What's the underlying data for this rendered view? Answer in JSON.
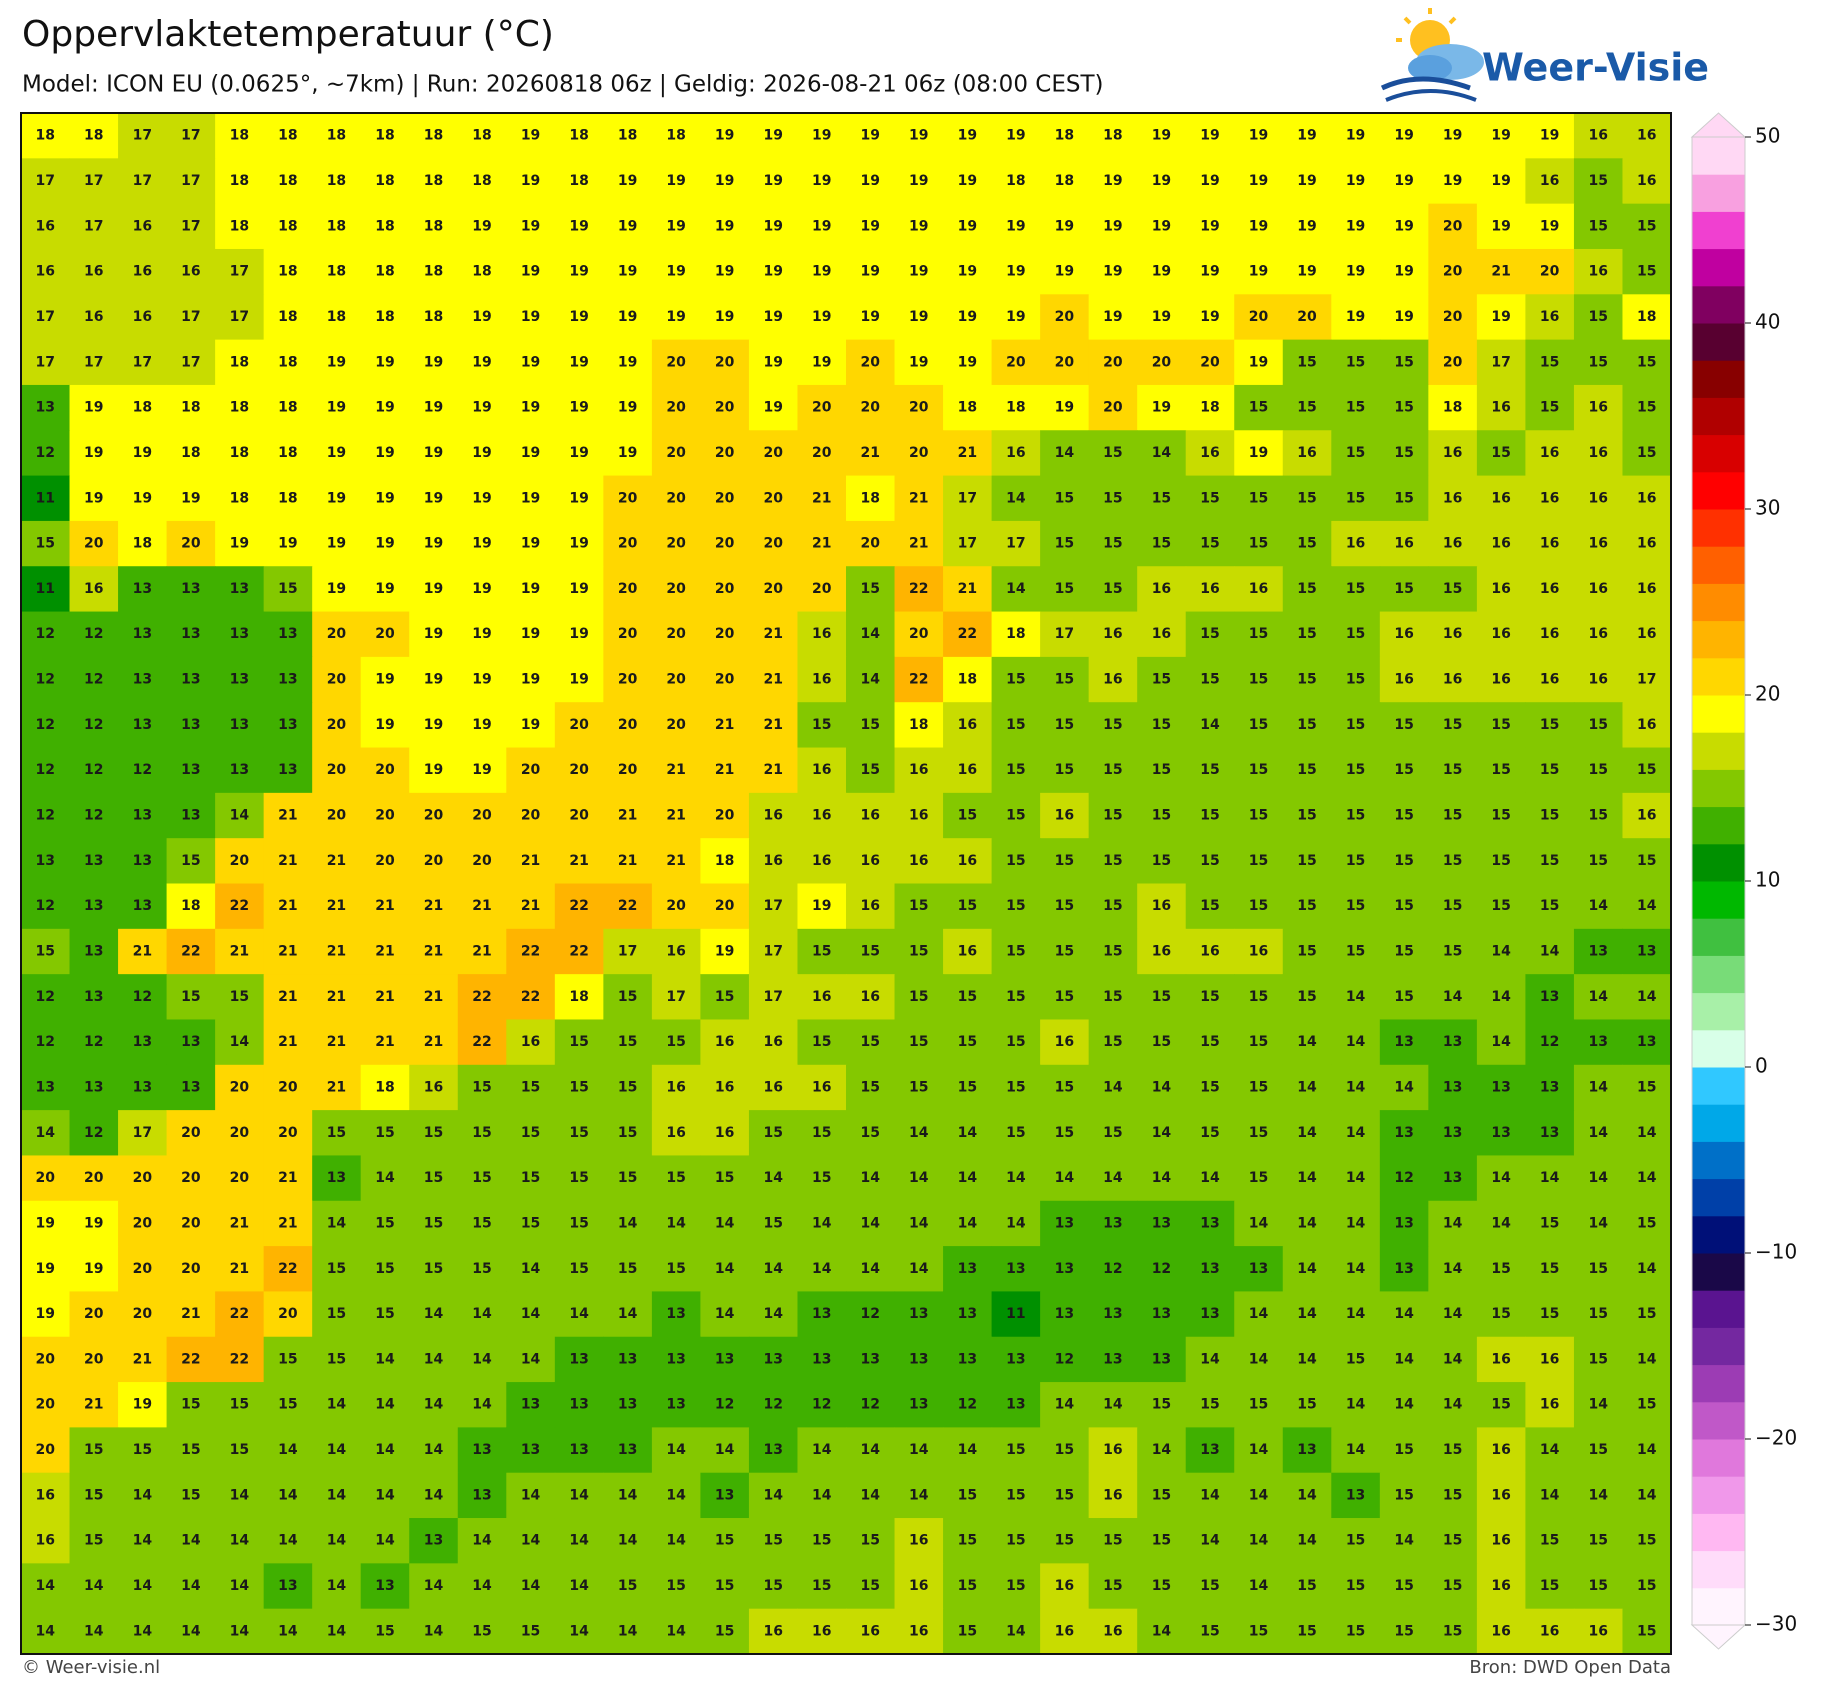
{
  "header": {
    "title": "Oppervlaktetemperatuur (°C)",
    "subtitle": "Model: ICON EU (0.0625°, ~7km)  |  Run: 20260818 06z  |  Geldig: 2026-08-21 06z (08:00 CEST)"
  },
  "logo": "Weer-Visie",
  "footer": {
    "left": "© Weer-visie.nl",
    "right": "Bron: DWD Open Data"
  },
  "colorbar": {
    "lim": [
      -30,
      50
    ],
    "ticks": [
      50,
      40,
      30,
      20,
      10,
      0,
      {
        "value": -10,
        "label": "−10"
      },
      {
        "value": -20,
        "label": "−20"
      },
      {
        "value": -30,
        "label": "−30"
      }
    ],
    "colors": [
      "#fff4fe",
      "#ffdcfa",
      "#ffb8f2",
      "#f098ea",
      "#e078dc",
      "#c058c8",
      "#9c3cb4",
      "#7428a0",
      "#5a1490",
      "#1a0848",
      "#001078",
      "#0040a8",
      "#0070c8",
      "#00a8e8",
      "#30c8ff",
      "#d8ffe8",
      "#a8f0a8",
      "#78dc78",
      "#40c040",
      "#00b800",
      "#009000",
      "#40b000",
      "#84c800",
      "#c8dc00",
      "#ffff00",
      "#ffd700",
      "#ffb400",
      "#ff8c00",
      "#ff6000",
      "#ff3000",
      "#ff0000",
      "#d80000",
      "#b00000",
      "#880000",
      "#580030",
      "#800060",
      "#c000a0",
      "#f040d0",
      "#f8a0e0",
      "#ffd8f4"
    ]
  },
  "map": {
    "values": [
      [
        18,
        18,
        17,
        17,
        18,
        18,
        18,
        18,
        18,
        18,
        19,
        18,
        18,
        18,
        19,
        19,
        19,
        19,
        19,
        19,
        19,
        18,
        18,
        19,
        19,
        19,
        19,
        19,
        19,
        19,
        19,
        19,
        16,
        16
      ],
      [
        17,
        17,
        17,
        17,
        18,
        18,
        18,
        18,
        18,
        18,
        19,
        18,
        19,
        19,
        19,
        19,
        19,
        19,
        19,
        19,
        18,
        18,
        19,
        19,
        19,
        19,
        19,
        19,
        19,
        19,
        19,
        16,
        15,
        16
      ],
      [
        16,
        17,
        16,
        17,
        18,
        18,
        18,
        18,
        18,
        19,
        19,
        19,
        19,
        19,
        19,
        19,
        19,
        19,
        19,
        19,
        19,
        19,
        19,
        19,
        19,
        19,
        19,
        19,
        19,
        20,
        19,
        19,
        15,
        15
      ],
      [
        16,
        16,
        16,
        16,
        17,
        18,
        18,
        18,
        18,
        18,
        19,
        19,
        19,
        19,
        19,
        19,
        19,
        19,
        19,
        19,
        19,
        19,
        19,
        19,
        19,
        19,
        19,
        19,
        19,
        20,
        21,
        20,
        16,
        15
      ],
      [
        17,
        16,
        16,
        17,
        17,
        18,
        18,
        18,
        18,
        19,
        19,
        19,
        19,
        19,
        19,
        19,
        19,
        19,
        19,
        19,
        19,
        20,
        19,
        19,
        19,
        20,
        20,
        19,
        19,
        20,
        19,
        16,
        15,
        18
      ],
      [
        17,
        17,
        17,
        17,
        18,
        18,
        19,
        19,
        19,
        19,
        19,
        19,
        19,
        20,
        20,
        19,
        19,
        20,
        19,
        19,
        20,
        20,
        20,
        20,
        20,
        19,
        15,
        15,
        15,
        20,
        17,
        15,
        15,
        15
      ],
      [
        13,
        19,
        18,
        18,
        18,
        18,
        19,
        19,
        19,
        19,
        19,
        19,
        19,
        20,
        20,
        19,
        20,
        20,
        20,
        18,
        18,
        19,
        20,
        19,
        18,
        15,
        15,
        15,
        15,
        18,
        16,
        15,
        16,
        15
      ],
      [
        12,
        19,
        19,
        18,
        18,
        18,
        19,
        19,
        19,
        19,
        19,
        19,
        19,
        20,
        20,
        20,
        20,
        21,
        20,
        21,
        16,
        14,
        15,
        14,
        16,
        19,
        16,
        15,
        15,
        16,
        15,
        16,
        16,
        15
      ],
      [
        11,
        19,
        19,
        19,
        18,
        18,
        19,
        19,
        19,
        19,
        19,
        19,
        20,
        20,
        20,
        20,
        21,
        18,
        21,
        17,
        14,
        15,
        15,
        15,
        15,
        15,
        15,
        15,
        15,
        16,
        16,
        16,
        16,
        16
      ],
      [
        15,
        20,
        18,
        20,
        19,
        19,
        19,
        19,
        19,
        19,
        19,
        19,
        20,
        20,
        20,
        20,
        21,
        20,
        21,
        17,
        17,
        15,
        15,
        15,
        15,
        15,
        15,
        16,
        16,
        16,
        16,
        16,
        16,
        16
      ],
      [
        11,
        16,
        13,
        13,
        13,
        15,
        19,
        19,
        19,
        19,
        19,
        19,
        20,
        20,
        20,
        20,
        20,
        15,
        22,
        21,
        14,
        15,
        15,
        16,
        16,
        16,
        15,
        15,
        15,
        15,
        16,
        16,
        16,
        16
      ],
      [
        12,
        12,
        13,
        13,
        13,
        13,
        20,
        20,
        19,
        19,
        19,
        19,
        20,
        20,
        20,
        21,
        16,
        14,
        20,
        22,
        18,
        17,
        16,
        16,
        15,
        15,
        15,
        15,
        16,
        16,
        16,
        16,
        16,
        16
      ],
      [
        12,
        12,
        13,
        13,
        13,
        13,
        20,
        19,
        19,
        19,
        19,
        19,
        20,
        20,
        20,
        21,
        16,
        14,
        22,
        18,
        15,
        15,
        16,
        15,
        15,
        15,
        15,
        15,
        16,
        16,
        16,
        16,
        16,
        17
      ],
      [
        12,
        12,
        13,
        13,
        13,
        13,
        20,
        19,
        19,
        19,
        19,
        20,
        20,
        20,
        21,
        21,
        15,
        15,
        18,
        16,
        15,
        15,
        15,
        15,
        14,
        15,
        15,
        15,
        15,
        15,
        15,
        15,
        15,
        16
      ],
      [
        12,
        12,
        12,
        13,
        13,
        13,
        20,
        20,
        19,
        19,
        20,
        20,
        20,
        21,
        21,
        21,
        16,
        15,
        16,
        16,
        15,
        15,
        15,
        15,
        15,
        15,
        15,
        15,
        15,
        15,
        15,
        15,
        15,
        15
      ],
      [
        12,
        12,
        13,
        13,
        14,
        21,
        20,
        20,
        20,
        20,
        20,
        20,
        21,
        21,
        20,
        16,
        16,
        16,
        16,
        15,
        15,
        16,
        15,
        15,
        15,
        15,
        15,
        15,
        15,
        15,
        15,
        15,
        15,
        16
      ],
      [
        13,
        13,
        13,
        15,
        20,
        21,
        21,
        20,
        20,
        20,
        21,
        21,
        21,
        21,
        18,
        16,
        16,
        16,
        16,
        16,
        15,
        15,
        15,
        15,
        15,
        15,
        15,
        15,
        15,
        15,
        15,
        15,
        15,
        15
      ],
      [
        12,
        13,
        13,
        18,
        22,
        21,
        21,
        21,
        21,
        21,
        21,
        22,
        22,
        20,
        20,
        17,
        19,
        16,
        15,
        15,
        15,
        15,
        15,
        16,
        15,
        15,
        15,
        15,
        15,
        15,
        15,
        15,
        14,
        14
      ],
      [
        15,
        13,
        21,
        22,
        21,
        21,
        21,
        21,
        21,
        21,
        22,
        22,
        17,
        16,
        19,
        17,
        15,
        15,
        15,
        16,
        15,
        15,
        15,
        16,
        16,
        16,
        15,
        15,
        15,
        15,
        14,
        14,
        13,
        13
      ],
      [
        12,
        13,
        12,
        15,
        15,
        21,
        21,
        21,
        21,
        22,
        22,
        18,
        15,
        17,
        15,
        17,
        16,
        16,
        15,
        15,
        15,
        15,
        15,
        15,
        15,
        15,
        15,
        14,
        15,
        14,
        14,
        13,
        14,
        14
      ],
      [
        12,
        12,
        13,
        13,
        14,
        21,
        21,
        21,
        21,
        22,
        16,
        15,
        15,
        15,
        16,
        16,
        15,
        15,
        15,
        15,
        15,
        16,
        15,
        15,
        15,
        15,
        14,
        14,
        13,
        13,
        14,
        12,
        13,
        13
      ],
      [
        13,
        13,
        13,
        13,
        20,
        20,
        21,
        18,
        16,
        15,
        15,
        15,
        15,
        16,
        16,
        16,
        16,
        15,
        15,
        15,
        15,
        15,
        14,
        14,
        15,
        15,
        14,
        14,
        14,
        13,
        13,
        13,
        14,
        15
      ],
      [
        14,
        12,
        17,
        20,
        20,
        20,
        15,
        15,
        15,
        15,
        15,
        15,
        15,
        16,
        16,
        15,
        15,
        15,
        14,
        14,
        15,
        15,
        15,
        14,
        15,
        15,
        14,
        14,
        13,
        13,
        13,
        13,
        14,
        14
      ],
      [
        20,
        20,
        20,
        20,
        20,
        21,
        13,
        14,
        15,
        15,
        15,
        15,
        15,
        15,
        15,
        14,
        15,
        14,
        14,
        14,
        14,
        14,
        14,
        14,
        14,
        15,
        14,
        14,
        12,
        13,
        14,
        14,
        14,
        14
      ],
      [
        19,
        19,
        20,
        20,
        21,
        21,
        14,
        15,
        15,
        15,
        15,
        15,
        14,
        14,
        14,
        15,
        14,
        14,
        14,
        14,
        14,
        13,
        13,
        13,
        13,
        14,
        14,
        14,
        13,
        14,
        14,
        15,
        14,
        15
      ],
      [
        19,
        19,
        20,
        20,
        21,
        22,
        15,
        15,
        15,
        15,
        14,
        15,
        15,
        15,
        14,
        14,
        14,
        14,
        14,
        13,
        13,
        13,
        12,
        12,
        13,
        13,
        14,
        14,
        13,
        14,
        15,
        15,
        15,
        14
      ],
      [
        19,
        20,
        20,
        21,
        22,
        20,
        15,
        15,
        14,
        14,
        14,
        14,
        14,
        13,
        14,
        14,
        13,
        12,
        13,
        13,
        11,
        13,
        13,
        13,
        13,
        14,
        14,
        14,
        14,
        14,
        15,
        15,
        15,
        15
      ],
      [
        20,
        20,
        21,
        22,
        22,
        15,
        15,
        14,
        14,
        14,
        14,
        13,
        13,
        13,
        13,
        13,
        13,
        13,
        13,
        13,
        13,
        12,
        13,
        13,
        14,
        14,
        14,
        15,
        14,
        14,
        16,
        16,
        15,
        14
      ],
      [
        20,
        21,
        19,
        15,
        15,
        15,
        14,
        14,
        14,
        14,
        13,
        13,
        13,
        13,
        12,
        12,
        12,
        12,
        13,
        12,
        13,
        14,
        14,
        15,
        15,
        15,
        15,
        14,
        14,
        14,
        15,
        16,
        14,
        15
      ],
      [
        20,
        15,
        15,
        15,
        15,
        14,
        14,
        14,
        14,
        13,
        13,
        13,
        13,
        14,
        14,
        13,
        14,
        14,
        14,
        14,
        15,
        15,
        16,
        14,
        13,
        14,
        13,
        14,
        15,
        15,
        16,
        14,
        15,
        14
      ],
      [
        16,
        15,
        14,
        15,
        14,
        14,
        14,
        14,
        14,
        13,
        14,
        14,
        14,
        14,
        13,
        14,
        14,
        14,
        14,
        15,
        15,
        15,
        16,
        15,
        14,
        14,
        14,
        13,
        15,
        15,
        16,
        14,
        14,
        14
      ],
      [
        16,
        15,
        14,
        14,
        14,
        14,
        14,
        14,
        13,
        14,
        14,
        14,
        14,
        14,
        15,
        15,
        15,
        15,
        16,
        15,
        15,
        15,
        15,
        15,
        14,
        14,
        14,
        15,
        14,
        15,
        16,
        15,
        15,
        15
      ],
      [
        14,
        14,
        14,
        14,
        14,
        13,
        14,
        13,
        14,
        14,
        14,
        14,
        15,
        15,
        15,
        15,
        15,
        15,
        16,
        15,
        15,
        16,
        15,
        15,
        15,
        14,
        15,
        15,
        15,
        15,
        16,
        15,
        15,
        15
      ],
      [
        14,
        14,
        14,
        14,
        14,
        14,
        14,
        15,
        14,
        15,
        15,
        14,
        14,
        14,
        15,
        16,
        16,
        16,
        16,
        15,
        14,
        16,
        16,
        14,
        15,
        15,
        15,
        15,
        15,
        15,
        16,
        16,
        16,
        15
      ]
    ]
  }
}
